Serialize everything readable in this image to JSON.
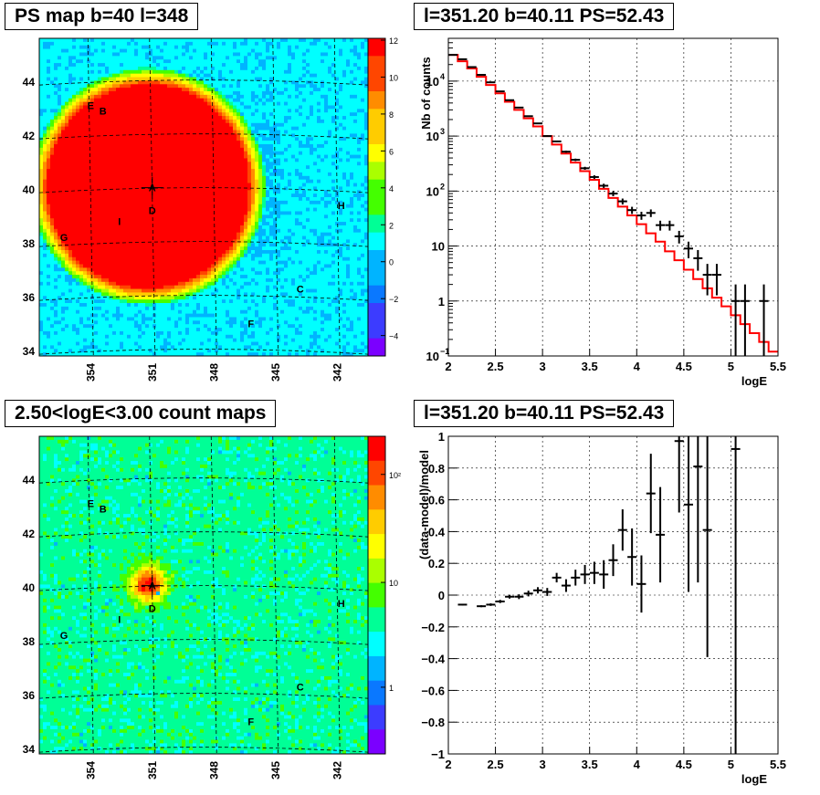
{
  "titles": {
    "ps_map": "PS map b=40 l=348",
    "count_map": "2.50<logE<3.00 count maps",
    "spectrum": "l=351.20 b=40.11 PS=52.43",
    "residual": "l=351.20 b=40.11 PS=52.43"
  },
  "colors": {
    "model_line": "#ff0000",
    "data_markers": "#000000",
    "grid": "#000000",
    "palette": [
      "#7b00ff",
      "#3c3cff",
      "#0a78ff",
      "#00b4ff",
      "#00ffff",
      "#00ff96",
      "#44ff00",
      "#aaff00",
      "#ffff00",
      "#ffcc00",
      "#ff8c00",
      "#ff4600",
      "#ff0000"
    ]
  },
  "maps": {
    "axis_b_ticks": [
      "34",
      "36",
      "38",
      "40",
      "42",
      "44"
    ],
    "axis_l_ticks": [
      "354",
      "351",
      "348",
      "345",
      "342"
    ],
    "source_labels": [
      {
        "label": "A",
        "l": 351.0,
        "b": 40.05
      },
      {
        "label": "B",
        "l": 353.4,
        "b": 42.9
      },
      {
        "label": "C",
        "l": 343.8,
        "b": 36.3
      },
      {
        "label": "D",
        "l": 351.0,
        "b": 39.2
      },
      {
        "label": "E",
        "l": 354.0,
        "b": 43.1
      },
      {
        "label": "F",
        "l": 346.2,
        "b": 35.0
      },
      {
        "label": "G",
        "l": 355.3,
        "b": 38.2
      },
      {
        "label": "H",
        "l": 341.8,
        "b": 39.4
      },
      {
        "label": "I",
        "l": 352.6,
        "b": 38.8
      }
    ],
    "ps_scale_ticks": [
      "12",
      "10",
      "8",
      "6",
      "4",
      "2",
      "0",
      "−2",
      "−4"
    ],
    "count_scale_ticks": [
      "10²",
      "10",
      "1"
    ]
  },
  "chart_data": [
    {
      "type": "heatmap",
      "title": "PS map b=40 l=348",
      "xlabel": "",
      "ylabel": "",
      "xlim": [
        356.5,
        340.5
      ],
      "ylim": [
        33.8,
        45.6
      ],
      "zlim": [
        -5,
        12
      ],
      "description_values": {
        "source_center": [
          351.2,
          40.1
        ],
        "source_peak": 52.43
      }
    },
    {
      "type": "heatmap",
      "title": "2.50<logE<3.00 count maps",
      "xlabel": "",
      "ylabel": "",
      "xlim": [
        356.5,
        340.5
      ],
      "ylim": [
        33.8,
        45.6
      ],
      "zscale": "log",
      "zlim": [
        0.3,
        300
      ]
    },
    {
      "type": "line",
      "title": "l=351.20 b=40.11 PS=52.43",
      "xlabel": "logE",
      "ylabel": "Nb of counts",
      "xlim": [
        2,
        5.5
      ],
      "ylim": [
        0.1,
        60000
      ],
      "yscale": "log",
      "grid": true,
      "model_x_edges": [
        2.0,
        2.1,
        2.2,
        2.3,
        2.4,
        2.5,
        2.6,
        2.7,
        2.8,
        2.9,
        3.0,
        3.1,
        3.2,
        3.3,
        3.4,
        3.5,
        3.6,
        3.7,
        3.8,
        3.9,
        4.0,
        4.1,
        4.2,
        4.3,
        4.4,
        4.5,
        4.6,
        4.7,
        4.8,
        4.9,
        5.0,
        5.1,
        5.2,
        5.3,
        5.4,
        5.5
      ],
      "model_values": [
        30000,
        23000,
        17000,
        12000,
        8500,
        6000,
        4200,
        3000,
        2100,
        1500,
        1000,
        700,
        480,
        330,
        230,
        160,
        110,
        75,
        52,
        36,
        25,
        17,
        12,
        8,
        5.5,
        3.7,
        2.5,
        1.7,
        1.15,
        0.8,
        0.55,
        0.38,
        0.26,
        0.18,
        0.12
      ],
      "data_points": [
        {
          "x": 2.05,
          "y": 30000
        },
        {
          "x": 2.15,
          "y": 25000
        },
        {
          "x": 2.25,
          "y": 18000
        },
        {
          "x": 2.35,
          "y": 13000
        },
        {
          "x": 2.45,
          "y": 9500
        },
        {
          "x": 2.55,
          "y": 6500
        },
        {
          "x": 2.65,
          "y": 4500
        },
        {
          "x": 2.75,
          "y": 3300
        },
        {
          "x": 2.85,
          "y": 2300
        },
        {
          "x": 2.95,
          "y": 1700
        },
        {
          "x": 3.05,
          "y": 1000
        },
        {
          "x": 3.15,
          "y": 800
        },
        {
          "x": 3.25,
          "y": 520
        },
        {
          "x": 3.35,
          "y": 370
        },
        {
          "x": 3.45,
          "y": 260
        },
        {
          "x": 3.55,
          "y": 180
        },
        {
          "x": 3.65,
          "y": 125
        },
        {
          "x": 3.75,
          "y": 90
        },
        {
          "x": 3.85,
          "y": 65
        },
        {
          "x": 3.95,
          "y": 45
        },
        {
          "x": 4.05,
          "y": 36
        },
        {
          "x": 4.15,
          "y": 40
        },
        {
          "x": 4.25,
          "y": 24
        },
        {
          "x": 4.35,
          "y": 24
        },
        {
          "x": 4.45,
          "y": 15
        },
        {
          "x": 4.55,
          "y": 9
        },
        {
          "x": 4.65,
          "y": 6
        },
        {
          "x": 4.75,
          "y": 3
        },
        {
          "x": 4.85,
          "y": 3
        },
        {
          "x": 5.05,
          "y": 1
        },
        {
          "x": 5.15,
          "y": 1
        },
        {
          "x": 5.35,
          "y": 1
        }
      ]
    },
    {
      "type": "scatter",
      "title": "l=351.20 b=40.11 PS=52.43",
      "xlabel": "logE",
      "ylabel": "(data-model)/model",
      "xlim": [
        2,
        5.5
      ],
      "ylim": [
        -1,
        1
      ],
      "grid": true,
      "x_ticks": [
        "2",
        "2.5",
        "3",
        "3.5",
        "4",
        "4.5",
        "5",
        "5.5"
      ],
      "y_ticks": [
        "1",
        "0.8",
        "0.6",
        "0.4",
        "0.2",
        "0",
        "−0.2",
        "−0.4",
        "−0.6",
        "−0.8",
        "−1"
      ],
      "points": [
        {
          "x": 2.15,
          "y": -0.06,
          "err": 0.005
        },
        {
          "x": 2.35,
          "y": -0.07,
          "err": 0.006
        },
        {
          "x": 2.45,
          "y": -0.06,
          "err": 0.008
        },
        {
          "x": 2.55,
          "y": -0.04,
          "err": 0.01
        },
        {
          "x": 2.65,
          "y": -0.01,
          "err": 0.012
        },
        {
          "x": 2.75,
          "y": -0.01,
          "err": 0.015
        },
        {
          "x": 2.85,
          "y": 0.01,
          "err": 0.018
        },
        {
          "x": 2.95,
          "y": 0.03,
          "err": 0.02
        },
        {
          "x": 3.05,
          "y": 0.02,
          "err": 0.025
        },
        {
          "x": 3.15,
          "y": 0.11,
          "err": 0.03
        },
        {
          "x": 3.25,
          "y": 0.06,
          "err": 0.04
        },
        {
          "x": 3.35,
          "y": 0.11,
          "err": 0.05
        },
        {
          "x": 3.45,
          "y": 0.13,
          "err": 0.06
        },
        {
          "x": 3.55,
          "y": 0.14,
          "err": 0.07
        },
        {
          "x": 3.65,
          "y": 0.13,
          "err": 0.09
        },
        {
          "x": 3.75,
          "y": 0.22,
          "err": 0.1
        },
        {
          "x": 3.85,
          "y": 0.41,
          "err": 0.13
        },
        {
          "x": 3.95,
          "y": 0.24,
          "err": 0.18
        },
        {
          "x": 4.05,
          "y": 0.07,
          "err": 0.18
        },
        {
          "x": 4.15,
          "y": 0.64,
          "err": 0.25
        },
        {
          "x": 4.25,
          "y": 0.38,
          "err": 0.3
        },
        {
          "x": 4.45,
          "y": 0.97,
          "err": 0.45
        },
        {
          "x": 4.55,
          "y": 0.57,
          "err": 0.55
        },
        {
          "x": 4.65,
          "y": 0.81,
          "err": 0.73
        },
        {
          "x": 4.75,
          "y": 0.41,
          "err": 0.8
        },
        {
          "x": 5.05,
          "y": 0.92,
          "err": 1.92
        }
      ]
    }
  ]
}
